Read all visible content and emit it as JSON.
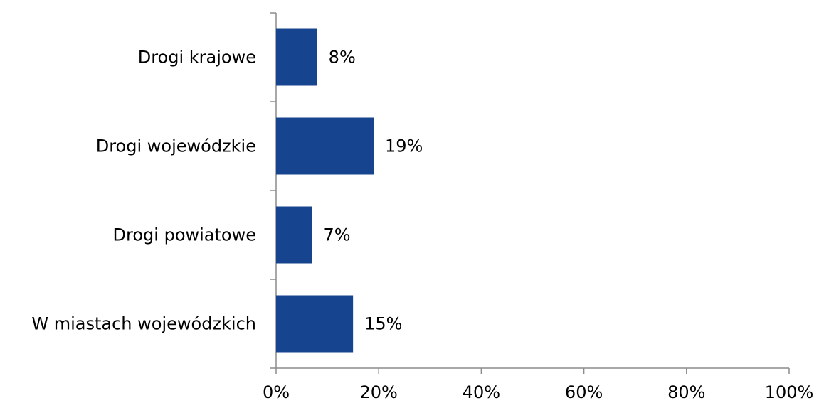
{
  "chart_data": {
    "type": "bar",
    "orientation": "horizontal",
    "categories": [
      "Drogi krajowe",
      "Drogi wojewódzkie",
      "Drogi powiatowe",
      "W miastach wojewódzkich"
    ],
    "values": [
      8,
      19,
      7,
      15
    ],
    "data_labels": [
      "8%",
      "19%",
      "7%",
      "15%"
    ],
    "xlim": [
      0,
      100
    ],
    "x_ticks": [
      0,
      20,
      40,
      60,
      80,
      100
    ],
    "x_tick_labels": [
      "0%",
      "20%",
      "40%",
      "60%",
      "80%",
      "100%"
    ],
    "grid": false,
    "legend": "none",
    "bar_color": "#17448E",
    "axis_color": "#8C8C8C"
  }
}
